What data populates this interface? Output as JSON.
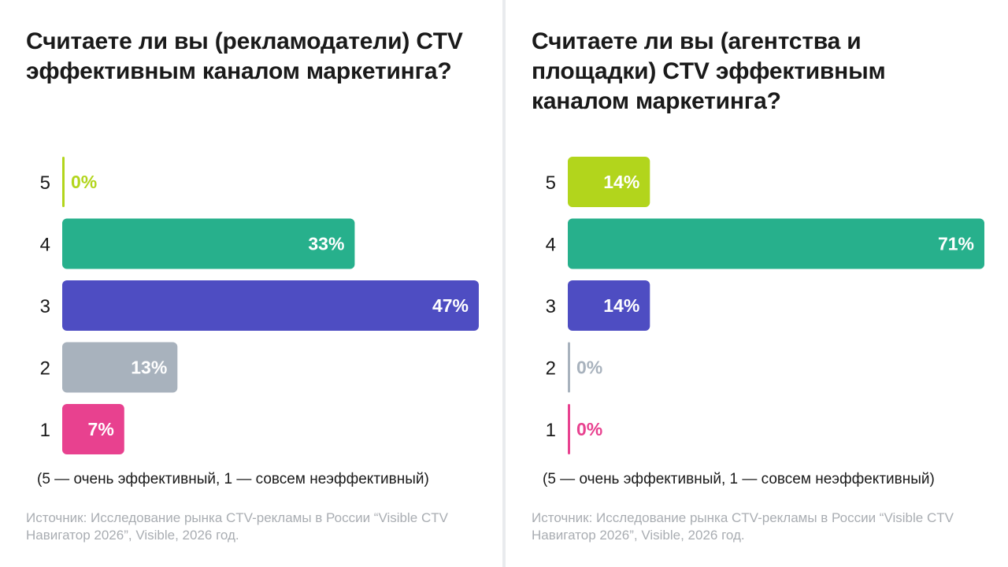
{
  "panels": [
    {
      "title": "Считаете ли вы (рекламодатели) CTV эффективным каналом маркетинга?",
      "note": "(5 — очень эффективный, 1 — совсем неэффективный)",
      "source": "Источник: Исследование рынка CTV-рекламы в России “Visible CTV Навигатор 2026”, Visible, 2026 год."
    },
    {
      "title": "Считаете ли вы (агентства и площадки) CTV эффективным каналом маркетинга?",
      "note": "(5 — очень эффективный, 1 — совсем неэффективный)",
      "source": "Источник: Исследование рынка CTV-рекламы в России “Visible CTV Навигатор 2026”, Visible, 2026 год."
    }
  ],
  "chart_data": [
    {
      "type": "bar",
      "orientation": "horizontal",
      "title": "Считаете ли вы (рекламодатели) CTV эффективным каналом маркетинга?",
      "categories": [
        "5",
        "4",
        "3",
        "2",
        "1"
      ],
      "values": [
        0,
        33,
        47,
        13,
        7
      ],
      "labels": [
        "0%",
        "33%",
        "47%",
        "13%",
        "7%"
      ],
      "colors": [
        "#b2d51c",
        "#27b08c",
        "#4e4dc2",
        "#a8b2bd",
        "#e8418f"
      ],
      "xlim": [
        0,
        47
      ]
    },
    {
      "type": "bar",
      "orientation": "horizontal",
      "title": "Считаете ли вы (агентства и площадки) CTV эффективным каналом маркетинга?",
      "categories": [
        "5",
        "4",
        "3",
        "2",
        "1"
      ],
      "values": [
        14,
        71,
        14,
        0,
        0
      ],
      "labels": [
        "14%",
        "71%",
        "14%",
        "0%",
        "0%"
      ],
      "colors": [
        "#b2d51c",
        "#27b08c",
        "#4e4dc2",
        "#a8b2bd",
        "#e8418f"
      ],
      "xlim": [
        0,
        71
      ]
    }
  ]
}
